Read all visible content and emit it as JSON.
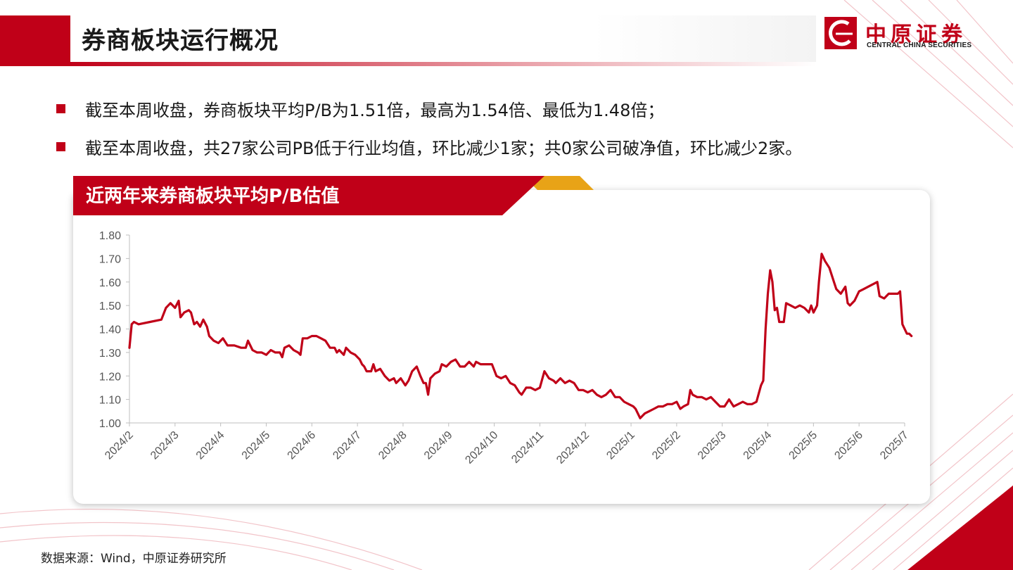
{
  "header": {
    "title": "券商板块运行概况",
    "logo_cn": "中原证券",
    "logo_en": "CENTRAL CHINA SECURITIES"
  },
  "bullets": [
    "截至本周收盘，券商板块平均P/B为1.51倍，最高为1.54倍、最低为1.48倍；",
    "截至本周收盘，共27家公司PB低于行业均值，环比减少1家；共0家公司破净值，环比减少2家。"
  ],
  "chart_card": {
    "title": "近两年来券商板块平均P/B估值"
  },
  "source": "数据来源：Wind，中原证券研究所",
  "colors": {
    "accent": "#c00018",
    "gold": "#e8a317",
    "line": "#c00018"
  },
  "chart_data": {
    "type": "line",
    "title": "近两年来券商板块平均P/B估值",
    "xlabel": "",
    "ylabel": "",
    "ylim": [
      1.0,
      1.8
    ],
    "y_ticks": [
      "1.00",
      "1.10",
      "1.20",
      "1.30",
      "1.40",
      "1.50",
      "1.60",
      "1.70",
      "1.80"
    ],
    "x_ticks": [
      "2024/2",
      "2024/3",
      "2024/4",
      "2024/5",
      "2024/6",
      "2024/7",
      "2024/8",
      "2024/9",
      "2024/10",
      "2024/11",
      "2024/12",
      "2025/1",
      "2025/2",
      "2025/3",
      "2025/4",
      "2025/5",
      "2025/6",
      "2025/7"
    ],
    "grid": false,
    "series": [
      {
        "values": [
          [
            0.0,
            1.32
          ],
          [
            0.05,
            1.42
          ],
          [
            0.1,
            1.43
          ],
          [
            0.2,
            1.42
          ],
          [
            0.45,
            1.43
          ],
          [
            0.7,
            1.44
          ],
          [
            0.8,
            1.49
          ],
          [
            0.9,
            1.51
          ],
          [
            1.0,
            1.49
          ],
          [
            1.08,
            1.52
          ],
          [
            1.12,
            1.45
          ],
          [
            1.2,
            1.47
          ],
          [
            1.3,
            1.48
          ],
          [
            1.35,
            1.47
          ],
          [
            1.42,
            1.42
          ],
          [
            1.48,
            1.43
          ],
          [
            1.55,
            1.41
          ],
          [
            1.62,
            1.44
          ],
          [
            1.7,
            1.41
          ],
          [
            1.75,
            1.37
          ],
          [
            1.85,
            1.35
          ],
          [
            1.95,
            1.34
          ],
          [
            2.05,
            1.36
          ],
          [
            2.15,
            1.33
          ],
          [
            2.3,
            1.33
          ],
          [
            2.45,
            1.32
          ],
          [
            2.55,
            1.32
          ],
          [
            2.6,
            1.35
          ],
          [
            2.7,
            1.31
          ],
          [
            2.8,
            1.3
          ],
          [
            2.9,
            1.3
          ],
          [
            3.0,
            1.29
          ],
          [
            3.1,
            1.31
          ],
          [
            3.2,
            1.3
          ],
          [
            3.3,
            1.3
          ],
          [
            3.35,
            1.28
          ],
          [
            3.4,
            1.32
          ],
          [
            3.5,
            1.33
          ],
          [
            3.6,
            1.31
          ],
          [
            3.7,
            1.3
          ],
          [
            3.75,
            1.29
          ],
          [
            3.8,
            1.36
          ],
          [
            3.9,
            1.36
          ],
          [
            4.0,
            1.37
          ],
          [
            4.1,
            1.37
          ],
          [
            4.2,
            1.36
          ],
          [
            4.3,
            1.35
          ],
          [
            4.4,
            1.32
          ],
          [
            4.5,
            1.32
          ],
          [
            4.55,
            1.3
          ],
          [
            4.6,
            1.31
          ],
          [
            4.7,
            1.29
          ],
          [
            4.75,
            1.32
          ],
          [
            4.85,
            1.3
          ],
          [
            4.95,
            1.29
          ],
          [
            5.05,
            1.27
          ],
          [
            5.1,
            1.25
          ],
          [
            5.15,
            1.24
          ],
          [
            5.2,
            1.22
          ],
          [
            5.3,
            1.22
          ],
          [
            5.35,
            1.25
          ],
          [
            5.4,
            1.22
          ],
          [
            5.5,
            1.23
          ],
          [
            5.6,
            1.2
          ],
          [
            5.7,
            1.18
          ],
          [
            5.8,
            1.19
          ],
          [
            5.85,
            1.17
          ],
          [
            5.95,
            1.19
          ],
          [
            6.05,
            1.16
          ],
          [
            6.12,
            1.18
          ],
          [
            6.2,
            1.22
          ],
          [
            6.3,
            1.24
          ],
          [
            6.38,
            1.2
          ],
          [
            6.45,
            1.17
          ],
          [
            6.5,
            1.17
          ],
          [
            6.55,
            1.12
          ],
          [
            6.6,
            1.19
          ],
          [
            6.7,
            1.21
          ],
          [
            6.8,
            1.22
          ],
          [
            6.85,
            1.25
          ],
          [
            6.95,
            1.24
          ],
          [
            7.05,
            1.26
          ],
          [
            7.15,
            1.27
          ],
          [
            7.25,
            1.24
          ],
          [
            7.35,
            1.24
          ],
          [
            7.45,
            1.26
          ],
          [
            7.55,
            1.24
          ],
          [
            7.6,
            1.26
          ],
          [
            7.7,
            1.25
          ],
          [
            7.8,
            1.25
          ],
          [
            7.95,
            1.25
          ],
          [
            8.05,
            1.2
          ],
          [
            8.15,
            1.19
          ],
          [
            8.25,
            1.2
          ],
          [
            8.35,
            1.17
          ],
          [
            8.45,
            1.16
          ],
          [
            8.55,
            1.13
          ],
          [
            8.6,
            1.12
          ],
          [
            8.7,
            1.15
          ],
          [
            8.8,
            1.15
          ],
          [
            8.9,
            1.14
          ],
          [
            9.0,
            1.15
          ],
          [
            9.1,
            1.22
          ],
          [
            9.2,
            1.19
          ],
          [
            9.3,
            1.18
          ],
          [
            9.35,
            1.17
          ],
          [
            9.45,
            1.19
          ],
          [
            9.55,
            1.17
          ],
          [
            9.65,
            1.18
          ],
          [
            9.75,
            1.17
          ],
          [
            9.85,
            1.14
          ],
          [
            9.95,
            1.14
          ],
          [
            10.05,
            1.13
          ],
          [
            10.15,
            1.14
          ],
          [
            10.25,
            1.12
          ],
          [
            10.35,
            1.11
          ],
          [
            10.45,
            1.12
          ],
          [
            10.55,
            1.14
          ],
          [
            10.65,
            1.11
          ],
          [
            10.75,
            1.11
          ],
          [
            10.85,
            1.09
          ],
          [
            10.95,
            1.08
          ],
          [
            11.05,
            1.07
          ],
          [
            11.1,
            1.06
          ],
          [
            11.2,
            1.02
          ],
          [
            11.3,
            1.04
          ],
          [
            11.4,
            1.05
          ],
          [
            11.5,
            1.06
          ],
          [
            11.6,
            1.07
          ],
          [
            11.7,
            1.07
          ],
          [
            11.8,
            1.08
          ],
          [
            11.9,
            1.08
          ],
          [
            12.0,
            1.09
          ],
          [
            12.08,
            1.06
          ],
          [
            12.15,
            1.07
          ],
          [
            12.25,
            1.08
          ],
          [
            12.3,
            1.14
          ],
          [
            12.35,
            1.12
          ],
          [
            12.45,
            1.11
          ],
          [
            12.55,
            1.11
          ],
          [
            12.65,
            1.1
          ],
          [
            12.75,
            1.11
          ],
          [
            12.85,
            1.09
          ],
          [
            12.95,
            1.07
          ],
          [
            13.05,
            1.07
          ],
          [
            13.15,
            1.1
          ],
          [
            13.25,
            1.07
          ],
          [
            13.35,
            1.08
          ],
          [
            13.45,
            1.09
          ],
          [
            13.55,
            1.08
          ],
          [
            13.65,
            1.08
          ],
          [
            13.75,
            1.09
          ],
          [
            13.85,
            1.16
          ],
          [
            13.9,
            1.18
          ],
          [
            13.95,
            1.4
          ],
          [
            14.0,
            1.55
          ],
          [
            14.05,
            1.65
          ],
          [
            14.1,
            1.6
          ],
          [
            14.15,
            1.48
          ],
          [
            14.2,
            1.49
          ],
          [
            14.25,
            1.43
          ],
          [
            14.35,
            1.43
          ],
          [
            14.4,
            1.51
          ],
          [
            14.5,
            1.5
          ],
          [
            14.6,
            1.49
          ],
          [
            14.7,
            1.5
          ],
          [
            14.8,
            1.49
          ],
          [
            14.9,
            1.47
          ],
          [
            14.95,
            1.5
          ],
          [
            15.0,
            1.47
          ],
          [
            15.08,
            1.5
          ],
          [
            15.12,
            1.6
          ],
          [
            15.18,
            1.72
          ],
          [
            15.25,
            1.69
          ],
          [
            15.35,
            1.66
          ],
          [
            15.45,
            1.6
          ],
          [
            15.5,
            1.57
          ],
          [
            15.6,
            1.55
          ],
          [
            15.7,
            1.58
          ],
          [
            15.75,
            1.51
          ],
          [
            15.8,
            1.5
          ],
          [
            15.9,
            1.52
          ],
          [
            16.0,
            1.56
          ],
          [
            16.1,
            1.57
          ],
          [
            16.2,
            1.58
          ],
          [
            16.3,
            1.59
          ],
          [
            16.4,
            1.6
          ],
          [
            16.45,
            1.54
          ],
          [
            16.55,
            1.53
          ],
          [
            16.65,
            1.55
          ],
          [
            16.75,
            1.55
          ],
          [
            16.85,
            1.55
          ],
          [
            16.9,
            1.56
          ],
          [
            16.95,
            1.42
          ],
          [
            17.05,
            1.38
          ],
          [
            17.1,
            1.38
          ],
          [
            17.15,
            1.37
          ]
        ]
      }
    ]
  }
}
